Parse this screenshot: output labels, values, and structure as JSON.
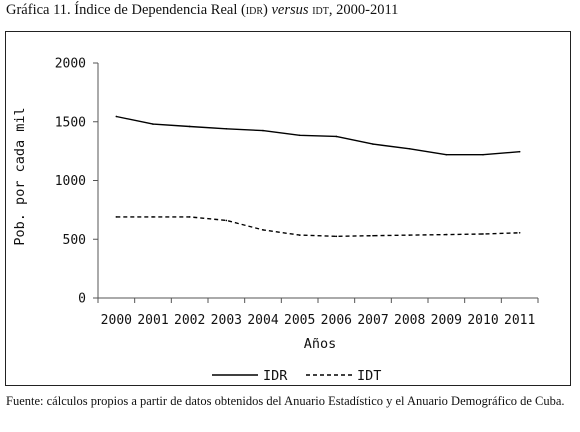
{
  "title": {
    "prefix": "Gráfica 11. Índice de Dependencia Real (",
    "sc1": "idr",
    "mid": ") ",
    "versus": "versus",
    "sc2": " idt",
    "suffix": ", 2000-2011"
  },
  "source_note": "Fuente: cálculos propios a partir de datos obtenidos del Anuario Estadístico y el Anuario Demográfico de Cuba.",
  "chart_data": {
    "type": "line",
    "title": "",
    "xlabel": "Años",
    "ylabel": "Pob. por cada mil",
    "x": [
      "2000",
      "2001",
      "2002",
      "2003",
      "2004",
      "2005",
      "2006",
      "2007",
      "2008",
      "2009",
      "2010",
      "2011"
    ],
    "ylim": [
      0,
      2000
    ],
    "yticks": [
      0,
      500,
      1000,
      1500,
      2000
    ],
    "grid": false,
    "legend_position": "bottom",
    "series": [
      {
        "name": "IDR",
        "style": "solid",
        "color": "#000000",
        "values": [
          1545,
          1480,
          1460,
          1440,
          1425,
          1385,
          1375,
          1310,
          1270,
          1220,
          1220,
          1245
        ]
      },
      {
        "name": "IDT",
        "style": "dashed",
        "color": "#000000",
        "values": [
          690,
          690,
          690,
          660,
          580,
          535,
          525,
          530,
          535,
          540,
          545,
          555
        ]
      }
    ]
  }
}
